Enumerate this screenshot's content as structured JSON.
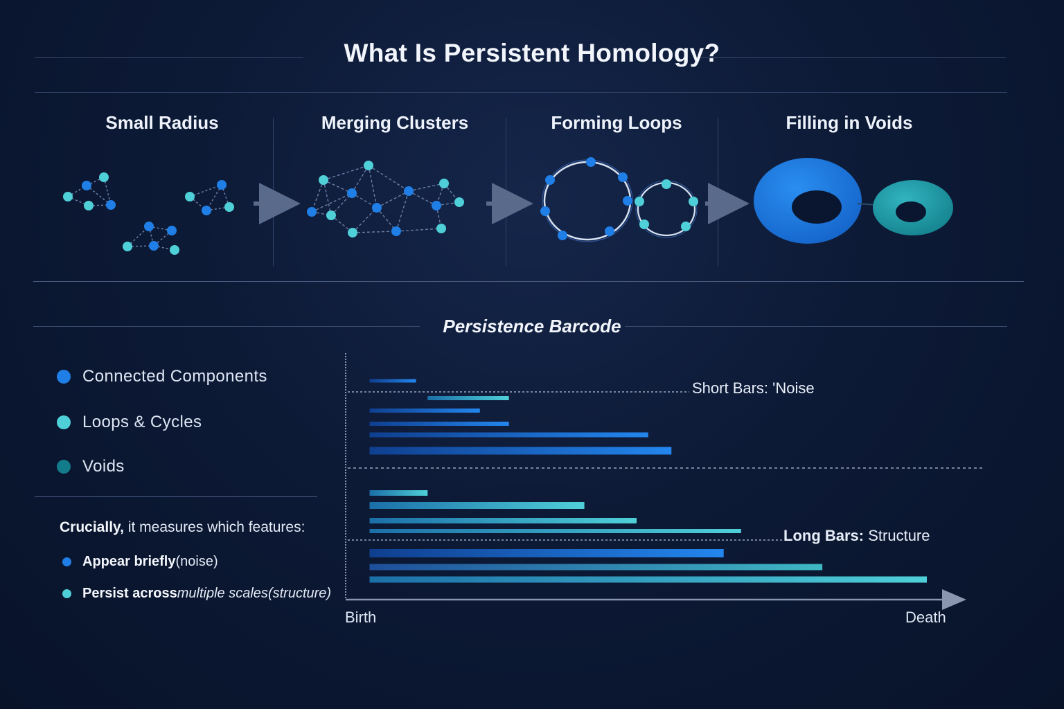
{
  "title": "What Is Persistent Homology?",
  "stages": [
    {
      "label": "Small Radius"
    },
    {
      "label": "Merging Clusters"
    },
    {
      "label": "Forming Loops"
    },
    {
      "label": "Filling in Voids"
    }
  ],
  "barcode": {
    "title": "Persistence Barcode",
    "x_start_label": "Birth",
    "x_end_label": "Death",
    "short_label_bold": "Short Bars:",
    "short_label_rest": " 'Noise",
    "long_label_bold": "Long Bars:",
    "long_label_rest": " Structure"
  },
  "legend": [
    {
      "label": "Connected Components",
      "color": "#1f7fe6"
    },
    {
      "label": "Loops & Cycles",
      "color": "#4fd0d8"
    },
    {
      "label": "Voids",
      "color": "#127c8a"
    }
  ],
  "explanation": {
    "lead_bold": "Crucially,",
    "lead_rest": " it measures which features:",
    "item1_bold": "Appear briefly",
    "item1_rest": " (noise)",
    "item2_bold": "Persist across",
    "item2_italic": " multiple scales",
    "item2_rest": " (structure)"
  },
  "colors": {
    "component": "#1f7fe6",
    "loop": "#4fd0d8",
    "void": "#127c8a",
    "background": "#0b1730"
  },
  "chart_data": {
    "type": "barcode",
    "title": "Persistence Barcode",
    "xlabel_start": "Birth",
    "xlabel_end": "Death",
    "xlim": [
      0,
      1
    ],
    "groups": [
      {
        "name": "short bars",
        "bars": [
          {
            "birth": 0.04,
            "death": 0.12,
            "kind": "component"
          },
          {
            "birth": 0.14,
            "death": 0.28,
            "kind": "loop"
          },
          {
            "birth": 0.04,
            "death": 0.23,
            "kind": "component"
          },
          {
            "birth": 0.04,
            "death": 0.28,
            "kind": "component"
          },
          {
            "birth": 0.04,
            "death": 0.52,
            "kind": "component"
          },
          {
            "birth": 0.04,
            "death": 0.56,
            "kind": "component"
          }
        ]
      },
      {
        "name": "long bars",
        "bars": [
          {
            "birth": 0.04,
            "death": 0.14,
            "kind": "loop"
          },
          {
            "birth": 0.04,
            "death": 0.41,
            "kind": "loop"
          },
          {
            "birth": 0.04,
            "death": 0.5,
            "kind": "loop"
          },
          {
            "birth": 0.04,
            "death": 0.68,
            "kind": "loop"
          },
          {
            "birth": 0.04,
            "death": 0.65,
            "kind": "component"
          },
          {
            "birth": 0.04,
            "death": 0.82,
            "kind": "void"
          },
          {
            "birth": 0.04,
            "death": 1.0,
            "kind": "loop"
          }
        ]
      }
    ]
  }
}
